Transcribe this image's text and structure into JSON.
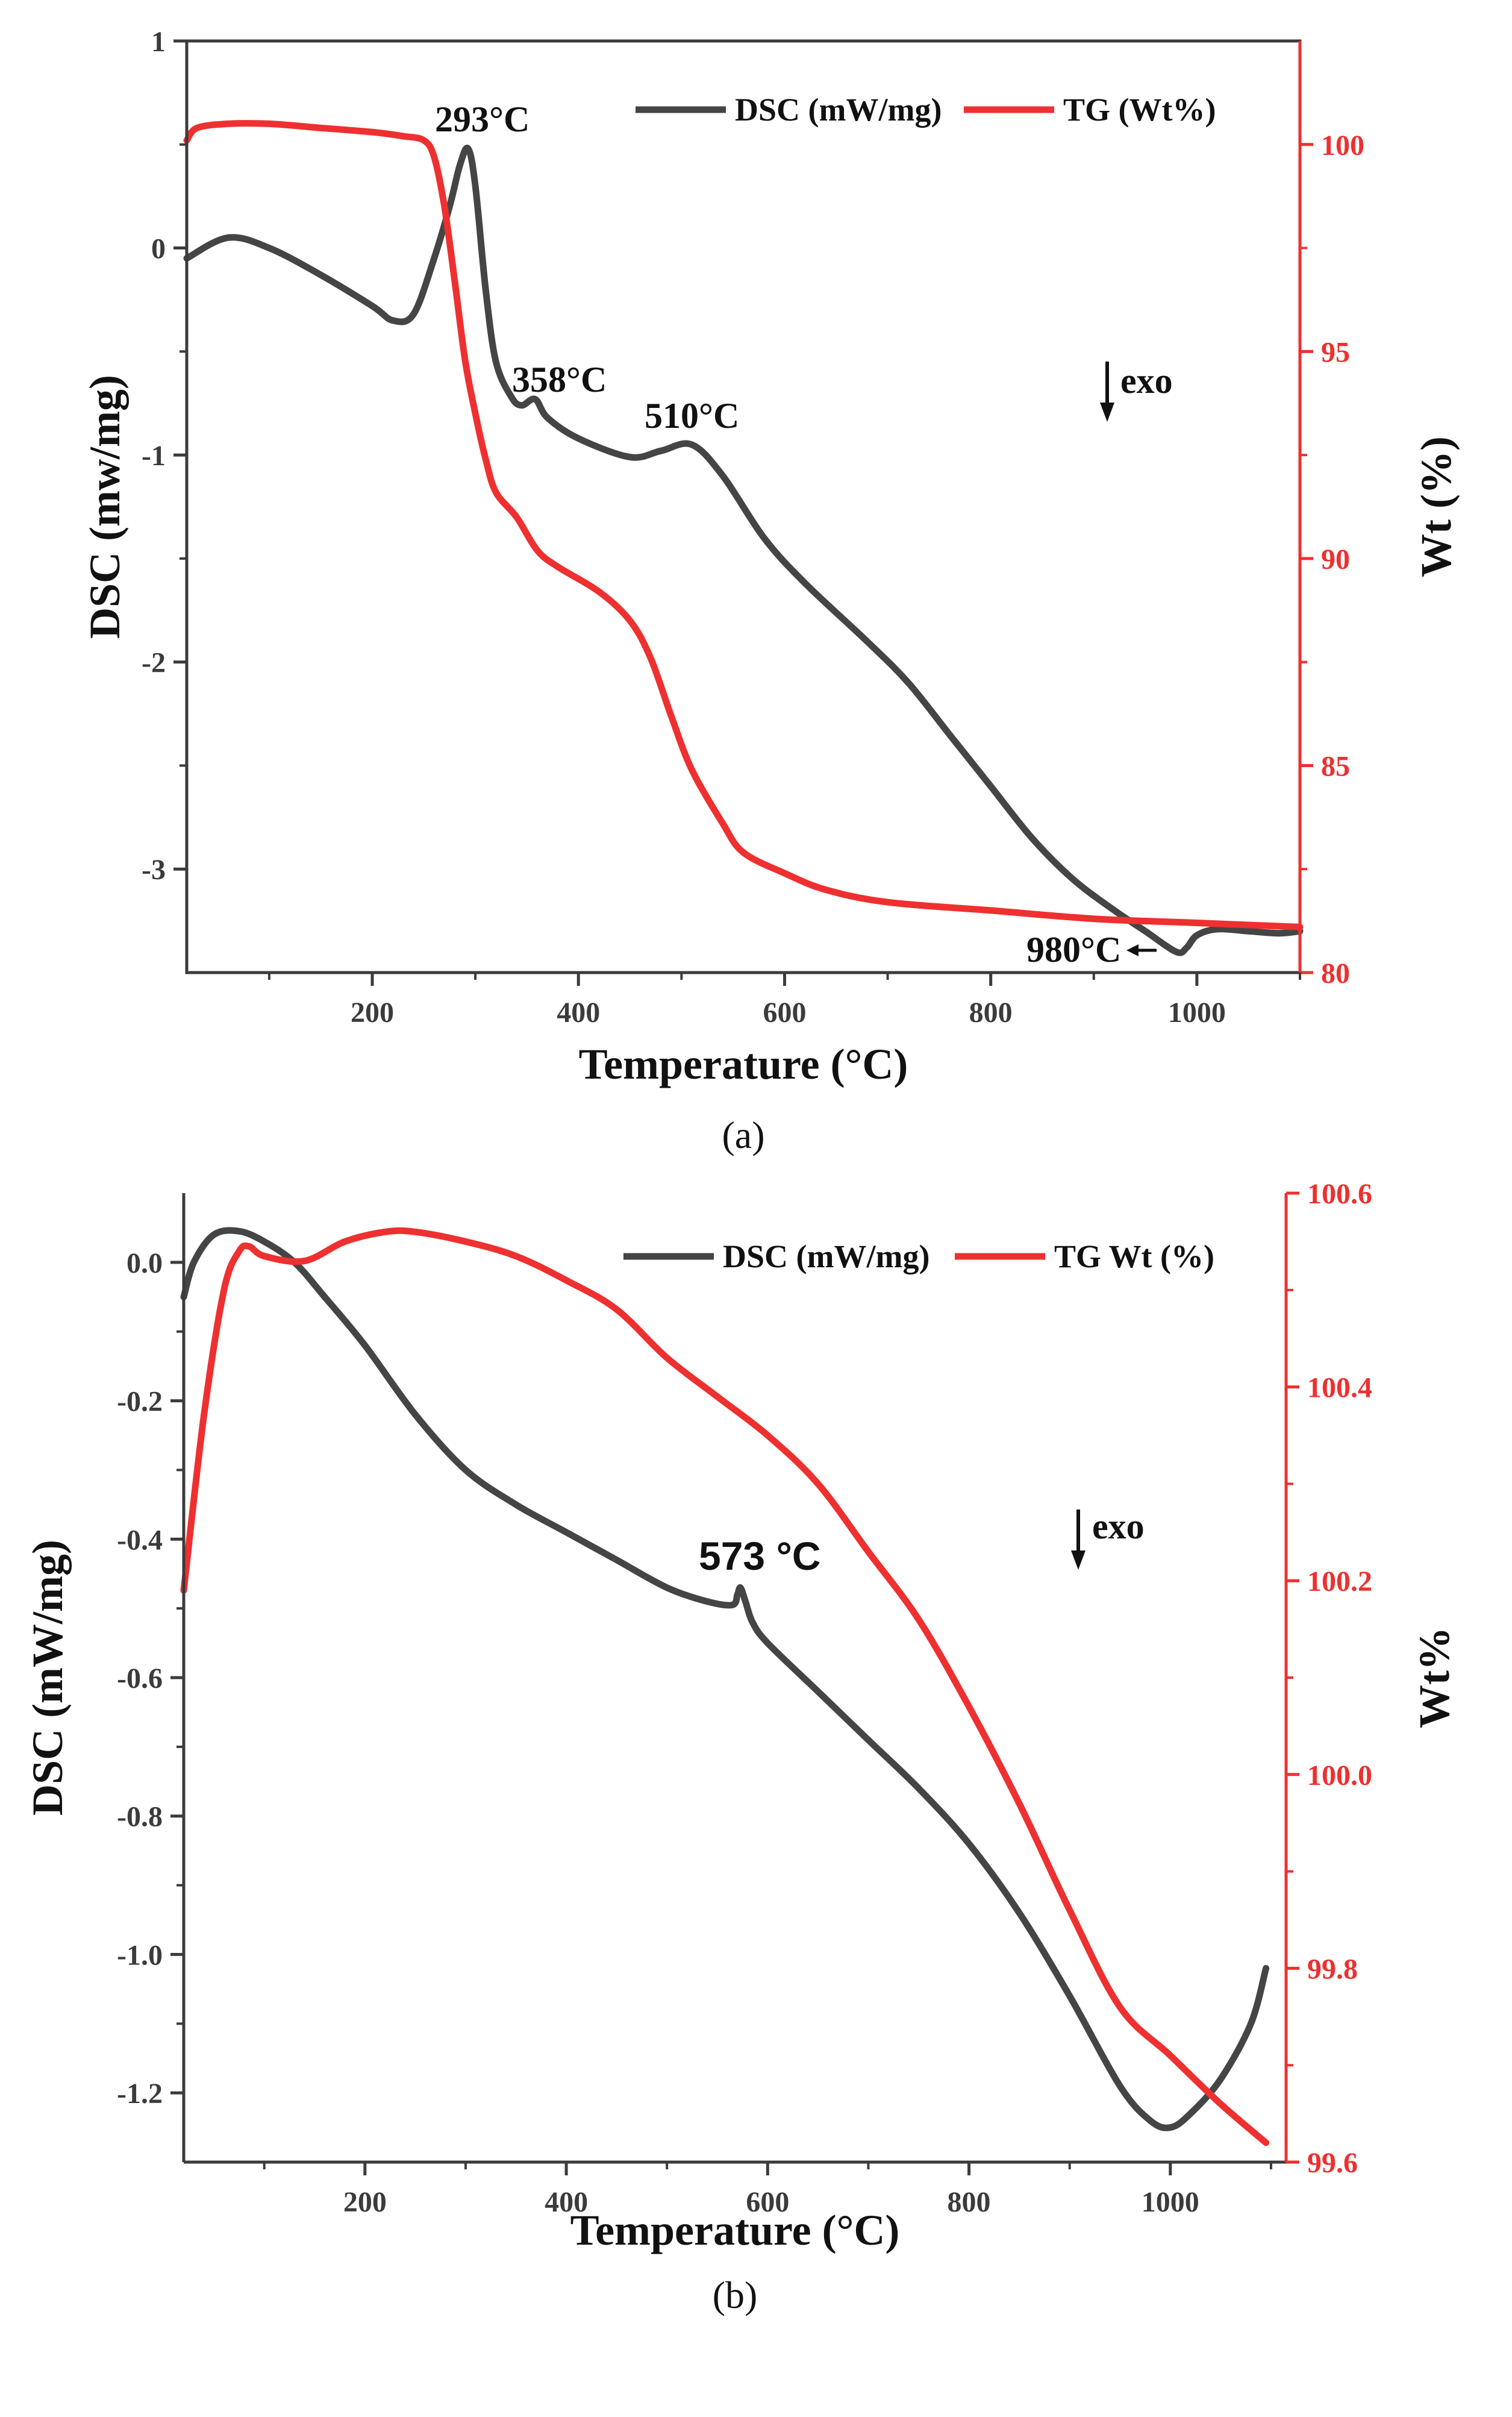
{
  "colors": {
    "dsc": "#454545",
    "tg": "#ee3030",
    "axis": "#3b3b3b",
    "axis_right": "#ee3030"
  },
  "chart_data": [
    {
      "id": "a",
      "type": "line",
      "caption": "(a)",
      "xlabel": "Temperature (°C)",
      "ylabel_left": "DSC (mw/mg)",
      "ylabel_right": "Wt (%)",
      "xlim": [
        20,
        1100
      ],
      "ylim_left": [
        -3.5,
        1.0
      ],
      "ylim_right": [
        80,
        102.5
      ],
      "xticks": [
        200,
        400,
        600,
        800,
        1000
      ],
      "xtick_labels": [
        "200",
        "400",
        "600",
        "800",
        "1000"
      ],
      "yticks_left": [
        1,
        0,
        -1,
        -2,
        -3
      ],
      "ytick_labels_left": [
        "1",
        "0",
        "-1",
        "-2",
        "-3"
      ],
      "yticks_right": [
        100,
        95,
        90,
        85,
        80
      ],
      "ytick_labels_right": [
        "100",
        "95",
        "90",
        "85",
        "80"
      ],
      "legend": {
        "position": "top-right",
        "entries": [
          "DSC (mW/mg)",
          "TG (Wt%)"
        ]
      },
      "annotations": [
        "293°C",
        "358°C",
        "510°C",
        "980°C"
      ],
      "exo_label": "exo",
      "series": [
        {
          "name": "DSC (mW/mg)",
          "axis": "left",
          "x": [
            20,
            60,
            100,
            150,
            200,
            220,
            240,
            260,
            275,
            285,
            293,
            300,
            310,
            320,
            335,
            345,
            358,
            370,
            400,
            450,
            480,
            510,
            540,
            580,
            620,
            680,
            720,
            760,
            800,
            840,
            880,
            920,
            950,
            980,
            990,
            1000,
            1020,
            1050,
            1080,
            1100
          ],
          "y": [
            -0.05,
            0.05,
            0.0,
            -0.13,
            -0.28,
            -0.35,
            -0.32,
            -0.05,
            0.2,
            0.4,
            0.48,
            0.3,
            -0.2,
            -0.55,
            -0.72,
            -0.76,
            -0.73,
            -0.82,
            -0.92,
            -1.01,
            -0.98,
            -0.95,
            -1.1,
            -1.4,
            -1.62,
            -1.9,
            -2.1,
            -2.35,
            -2.6,
            -2.85,
            -3.05,
            -3.2,
            -3.3,
            -3.4,
            -3.38,
            -3.32,
            -3.29,
            -3.3,
            -3.31,
            -3.3
          ]
        },
        {
          "name": "TG (Wt%)",
          "axis": "right",
          "x": [
            20,
            30,
            60,
            100,
            150,
            200,
            230,
            250,
            260,
            270,
            280,
            290,
            300,
            310,
            320,
            340,
            360,
            380,
            420,
            450,
            470,
            490,
            510,
            540,
            560,
            600,
            640,
            700,
            800,
            900,
            1000,
            1100
          ],
          "y": [
            100.1,
            100.4,
            100.5,
            100.5,
            100.4,
            100.3,
            100.2,
            100.1,
            99.7,
            98.5,
            96.7,
            94.8,
            93.5,
            92.4,
            91.6,
            91.0,
            90.2,
            89.8,
            89.2,
            88.5,
            87.6,
            86.2,
            84.9,
            83.6,
            82.9,
            82.4,
            82.0,
            81.7,
            81.5,
            81.3,
            81.2,
            81.1
          ]
        }
      ]
    },
    {
      "id": "b",
      "type": "line",
      "caption": "(b)",
      "xlabel": "Temperature (°C)",
      "ylabel_left": "DSC (mW/mg)",
      "ylabel_right": "Wt%",
      "xlim": [
        20,
        1115
      ],
      "ylim_left": [
        -1.3,
        0.1
      ],
      "ylim_right": [
        99.6,
        100.6
      ],
      "xticks": [
        200,
        400,
        600,
        800,
        1000
      ],
      "xtick_labels": [
        "200",
        "400",
        "600",
        "800",
        "1000"
      ],
      "yticks_left": [
        0.0,
        -0.2,
        -0.4,
        -0.6,
        -0.8,
        -1.0,
        -1.2
      ],
      "ytick_labels_left": [
        "0.0",
        "-0.2",
        "-0.4",
        "-0.6",
        "-0.8",
        "-1.0",
        "-1.2"
      ],
      "yticks_right": [
        100.6,
        100.4,
        100.2,
        100.0,
        99.8,
        99.6
      ],
      "ytick_labels_right": [
        "100.6",
        "100.4",
        "100.2",
        "100.0",
        "99.8",
        "99.6"
      ],
      "legend": {
        "position": "top-right",
        "entries": [
          "DSC (mW/mg)",
          "TG Wt (%)"
        ]
      },
      "annotations": [
        "573 °C"
      ],
      "exo_label": "exo",
      "series": [
        {
          "name": "DSC (mW/mg)",
          "axis": "left",
          "x": [
            20,
            30,
            50,
            75,
            100,
            130,
            160,
            200,
            250,
            300,
            350,
            400,
            450,
            500,
            540,
            565,
            570,
            573,
            578,
            585,
            600,
            650,
            700,
            750,
            800,
            850,
            900,
            950,
            980,
            1000,
            1020,
            1050,
            1080,
            1095
          ],
          "y": [
            -0.05,
            0.0,
            0.04,
            0.045,
            0.03,
            0.0,
            -0.05,
            -0.12,
            -0.22,
            -0.3,
            -0.35,
            -0.39,
            -0.43,
            -0.47,
            -0.49,
            -0.495,
            -0.48,
            -0.47,
            -0.49,
            -0.52,
            -0.55,
            -0.62,
            -0.69,
            -0.76,
            -0.84,
            -0.94,
            -1.06,
            -1.19,
            -1.24,
            -1.25,
            -1.23,
            -1.18,
            -1.1,
            -1.02
          ]
        },
        {
          "name": "TG Wt (%)",
          "axis": "right",
          "x": [
            20,
            40,
            60,
            75,
            85,
            100,
            140,
            180,
            220,
            250,
            300,
            350,
            400,
            450,
            500,
            550,
            600,
            650,
            700,
            750,
            800,
            850,
            900,
            950,
            1000,
            1050,
            1095
          ],
          "y": [
            100.19,
            100.37,
            100.5,
            100.54,
            100.545,
            100.535,
            100.53,
            100.55,
            100.56,
            100.56,
            100.55,
            100.535,
            100.51,
            100.48,
            100.43,
            100.39,
            100.35,
            100.3,
            100.23,
            100.16,
            100.07,
            99.97,
            99.86,
            99.76,
            99.71,
            99.66,
            99.62
          ]
        }
      ]
    }
  ]
}
